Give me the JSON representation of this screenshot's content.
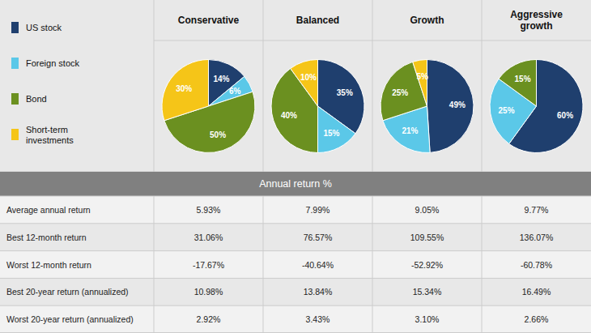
{
  "chart_data": [
    {
      "type": "pie",
      "title": "Conservative",
      "categories": [
        "US stock",
        "Foreign stock",
        "Bond",
        "Short-term\ninvestments"
      ],
      "values": [
        14,
        6,
        50,
        30
      ],
      "value_labels": [
        "14%",
        "6%",
        "50%",
        "30%"
      ],
      "colors": [
        "#1f3f6e",
        "#5bc8e8",
        "#6b9020",
        "#f5c518"
      ],
      "data_labels": true
    },
    {
      "type": "pie",
      "title": "Balanced",
      "categories": [
        "US stock",
        "Foreign stock",
        "Bond",
        "Short-term\ninvestments"
      ],
      "values": [
        35,
        15,
        40,
        10
      ],
      "value_labels": [
        "35%",
        "15%",
        "40%",
        "10%"
      ],
      "colors": [
        "#1f3f6e",
        "#5bc8e8",
        "#6b9020",
        "#f5c518"
      ],
      "data_labels": true
    },
    {
      "type": "pie",
      "title": "Growth",
      "categories": [
        "US stock",
        "Foreign stock",
        "Bond",
        "Short-term\ninvestments"
      ],
      "values": [
        49,
        21,
        25,
        5
      ],
      "value_labels": [
        "49%",
        "21%",
        "25%",
        "5%"
      ],
      "colors": [
        "#1f3f6e",
        "#5bc8e8",
        "#6b9020",
        "#f5c518"
      ],
      "data_labels": true
    },
    {
      "type": "pie",
      "title": "Aggressive\ngrowth",
      "categories": [
        "US stock",
        "Foreign stock",
        "Bond",
        "Short-term\ninvestments"
      ],
      "values": [
        60,
        25,
        15,
        0
      ],
      "value_labels": [
        "60%",
        "25%",
        "15%",
        null
      ],
      "colors": [
        "#1f3f6e",
        "#5bc8e8",
        "#6b9020",
        "#f5c518"
      ],
      "data_labels": true
    },
    {
      "type": "table",
      "title": "Annual return %",
      "categories": [
        "Average annual return",
        "Best 12-month return",
        "Worst 12-month return",
        "Best 20-year return (annualized)",
        "Worst 20-year return (annualized)"
      ],
      "series": [
        {
          "values": [
            5.93,
            31.06,
            -17.67,
            10.98,
            2.92
          ],
          "value_labels": [
            "5.93%",
            "31.06%",
            "-17.67%",
            "10.98%",
            "2.92%"
          ]
        },
        {
          "values": [
            7.99,
            76.57,
            -40.64,
            13.84,
            3.43
          ],
          "value_labels": [
            "7.99%",
            "76.57%",
            "-40.64%",
            "13.84%",
            "3.43%"
          ]
        },
        {
          "values": [
            9.05,
            109.55,
            -52.92,
            15.34,
            3.1
          ],
          "value_labels": [
            "9.05%",
            "109.55%",
            "-52.92%",
            "15.34%",
            "3.10%"
          ]
        },
        {
          "values": [
            9.77,
            136.07,
            -60.78,
            16.49,
            2.66
          ],
          "value_labels": [
            "9.77%",
            "136.07%",
            "-60.78%",
            "16.49%",
            "2.66%"
          ]
        }
      ]
    }
  ]
}
